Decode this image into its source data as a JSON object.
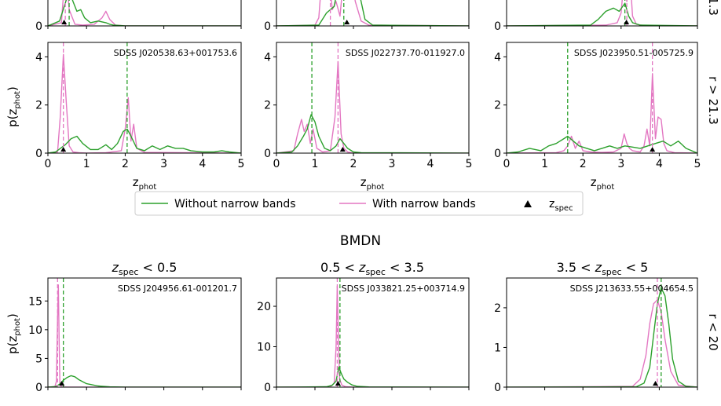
{
  "section_title": "BMDN",
  "legend": {
    "without_label": "Without narrow bands",
    "with_label": "With narrow bands",
    "zspec_label": "z",
    "zspec_sub": "spec"
  },
  "axis": {
    "ylabel_main": "p(z",
    "ylabel_sub": "phot",
    "ylabel_close": ")",
    "xlabel_main": "z",
    "xlabel_sub": "phot"
  },
  "column_titles": [
    {
      "pre": "",
      "main": "z",
      "sub": "spec",
      "post": " < 0.5"
    },
    {
      "pre": "0.5 < ",
      "main": "z",
      "sub": "spec",
      "post": " < 3.5"
    },
    {
      "pre": "3.5 < ",
      "main": "z",
      "sub": "spec",
      "post": " < 5"
    }
  ],
  "row_labels": [
    "r > 21.3",
    "r < 20"
  ],
  "partial_top_row_label": "1.3",
  "colors": {
    "without": "#2ca02c",
    "with": "#e377c2",
    "axis": "#000000"
  },
  "chart_data": [
    {
      "type": "line",
      "row": "top-partial",
      "xlim": [
        0,
        5
      ],
      "ylim": [
        0,
        4.5
      ],
      "yticks_visible": [
        "0"
      ],
      "title": "",
      "object": "",
      "series": [
        {
          "name": "Without narrow bands",
          "x": [
            0,
            0.3,
            0.45,
            0.55,
            0.65,
            0.75,
            0.85,
            0.95,
            1.1,
            1.3,
            1.5,
            1.6,
            1.7,
            2,
            5
          ],
          "y": [
            0,
            0.3,
            1.4,
            2.2,
            1.5,
            0.9,
            1.0,
            0.5,
            0.2,
            0.3,
            0.2,
            0.1,
            0.05,
            0,
            0
          ]
        },
        {
          "name": "With narrow bands",
          "x": [
            0,
            0.35,
            0.42,
            0.48,
            0.55,
            0.7,
            0.9,
            1.2,
            1.4,
            1.5,
            1.6,
            1.75,
            2,
            5
          ],
          "y": [
            0,
            0.2,
            2.5,
            3.2,
            1.0,
            0.1,
            0.05,
            0.1,
            0.5,
            0.9,
            0.4,
            0.05,
            0,
            0
          ]
        }
      ],
      "zspec": 0.42,
      "vlines": {
        "without": 0.55,
        "with": 0.45
      }
    },
    {
      "type": "line",
      "row": "top-partial",
      "xlim": [
        0,
        5
      ],
      "ylim": [
        0,
        4.5
      ],
      "yticks_visible": [
        "0"
      ],
      "title": "",
      "object": "",
      "series": [
        {
          "name": "Without narrow bands",
          "x": [
            0,
            1.1,
            1.3,
            1.5,
            1.6,
            1.75,
            1.85,
            1.95,
            2.1,
            2.2,
            2.3,
            2.5,
            5
          ],
          "y": [
            0,
            0.05,
            0.8,
            1.2,
            2.5,
            3.0,
            2.8,
            2.4,
            2.6,
            1.5,
            0.4,
            0.05,
            0
          ]
        },
        {
          "name": "With narrow bands",
          "x": [
            0,
            1.0,
            1.1,
            1.18,
            1.25,
            1.35,
            1.45,
            1.55,
            1.65,
            1.75,
            1.85,
            1.95,
            2.05,
            2.2,
            2.4,
            5
          ],
          "y": [
            0,
            0.05,
            0.5,
            3.0,
            2.5,
            3.5,
            1.0,
            1.5,
            0.6,
            3.2,
            2.0,
            2.8,
            1.5,
            0.3,
            0.05,
            0
          ]
        }
      ],
      "zspec": 1.83,
      "vlines": {
        "without": 1.75,
        "with": 1.4
      }
    },
    {
      "type": "line",
      "row": "top-partial",
      "xlim": [
        0,
        5
      ],
      "ylim": [
        0,
        4.5
      ],
      "yticks_visible": [
        "0"
      ],
      "title": "",
      "object": "",
      "series": [
        {
          "name": "Without narrow bands",
          "x": [
            0,
            2.2,
            2.4,
            2.6,
            2.8,
            2.95,
            3.1,
            3.2,
            3.3,
            3.5,
            5
          ],
          "y": [
            0,
            0.05,
            0.4,
            0.9,
            1.1,
            0.9,
            1.4,
            0.6,
            0.2,
            0.05,
            0
          ]
        },
        {
          "name": "With narrow bands",
          "x": [
            0,
            2.6,
            2.9,
            3.0,
            3.08,
            3.15,
            3.22,
            3.3,
            3.4,
            3.6,
            5
          ],
          "y": [
            0,
            0.05,
            0.2,
            0.8,
            3.0,
            1.5,
            3.5,
            0.6,
            0.1,
            0.02,
            0
          ]
        }
      ],
      "zspec": 3.14,
      "vlines": {
        "without": 3.1,
        "with": 3.15
      }
    },
    {
      "type": "line",
      "row": "r > 21.3",
      "title": "",
      "object": "SDSS J020538.63+001753.6",
      "xlim": [
        0,
        5
      ],
      "ylim": [
        0,
        4.6
      ],
      "xticks": [
        0,
        1,
        2,
        3,
        4,
        5
      ],
      "xtick_labels": [
        "0",
        "1",
        "2",
        "3",
        "4",
        "5"
      ],
      "yticks": [
        0,
        2,
        4
      ],
      "ytick_labels": [
        "0",
        "2",
        "4"
      ],
      "series": [
        {
          "name": "Without narrow bands",
          "x": [
            0,
            0.2,
            0.45,
            0.6,
            0.75,
            0.9,
            1.1,
            1.3,
            1.5,
            1.65,
            1.8,
            1.95,
            2.05,
            2.15,
            2.3,
            2.5,
            2.7,
            2.9,
            3.1,
            3.3,
            3.5,
            3.7,
            4.0,
            4.3,
            4.5,
            4.7,
            5.0
          ],
          "y": [
            0,
            0.05,
            0.35,
            0.6,
            0.7,
            0.4,
            0.15,
            0.15,
            0.35,
            0.15,
            0.4,
            0.9,
            1.0,
            0.7,
            0.2,
            0.1,
            0.3,
            0.15,
            0.3,
            0.2,
            0.2,
            0.1,
            0.05,
            0.05,
            0.1,
            0.05,
            0
          ]
        },
        {
          "name": "With narrow bands",
          "x": [
            0,
            0.25,
            0.32,
            0.4,
            0.48,
            0.55,
            0.65,
            0.8,
            1.0,
            1.5,
            1.9,
            2.0,
            2.08,
            2.15,
            2.22,
            2.3,
            2.5,
            5.0
          ],
          "y": [
            0,
            0.05,
            1.5,
            4.1,
            2.0,
            0.3,
            0.05,
            0.02,
            0,
            0.02,
            0.1,
            1.0,
            2.3,
            0.5,
            1.2,
            0.2,
            0.03,
            0
          ]
        }
      ],
      "zspec": 0.4,
      "vlines": {
        "without": 2.05,
        "with": 0.4
      }
    },
    {
      "type": "line",
      "row": "r > 21.3",
      "title": "",
      "object": "SDSS J022737.70-011927.0",
      "xlim": [
        0,
        5
      ],
      "ylim": [
        0,
        4.6
      ],
      "xticks": [
        0,
        1,
        2,
        3,
        4,
        5
      ],
      "xtick_labels": [
        "0",
        "1",
        "2",
        "3",
        "4",
        "5"
      ],
      "yticks": [
        0,
        2,
        4
      ],
      "ytick_labels": [
        "0",
        "2",
        "4"
      ],
      "series": [
        {
          "name": "Without narrow bands",
          "x": [
            0,
            0.4,
            0.55,
            0.7,
            0.8,
            0.9,
            1.0,
            1.1,
            1.25,
            1.4,
            1.55,
            1.65,
            1.75,
            1.85,
            2.0,
            2.2,
            5.0
          ],
          "y": [
            0,
            0.05,
            0.3,
            0.7,
            1.0,
            1.6,
            1.3,
            0.7,
            0.2,
            0.1,
            0.3,
            0.6,
            0.4,
            0.2,
            0.05,
            0.02,
            0
          ]
        },
        {
          "name": "With narrow bands",
          "x": [
            0,
            0.45,
            0.55,
            0.65,
            0.72,
            0.8,
            0.88,
            0.95,
            1.05,
            1.2,
            1.4,
            1.52,
            1.6,
            1.68,
            1.75,
            1.85,
            2.0,
            5.0
          ],
          "y": [
            0,
            0.1,
            0.8,
            1.4,
            0.9,
            1.2,
            0.4,
            1.0,
            0.2,
            0.05,
            0.1,
            1.5,
            3.8,
            0.8,
            0.2,
            0.05,
            0,
            0
          ]
        }
      ],
      "zspec": 1.72,
      "vlines": {
        "without": 0.92,
        "with": 1.6
      }
    },
    {
      "type": "line",
      "row": "r > 21.3",
      "title": "",
      "object": "SDSS J023950.51-005725.9",
      "xlim": [
        0,
        5
      ],
      "ylim": [
        0,
        4.6
      ],
      "xticks": [
        0,
        1,
        2,
        3,
        4,
        5
      ],
      "xtick_labels": [
        "0",
        "1",
        "2",
        "3",
        "4",
        "5"
      ],
      "yticks": [
        0,
        2,
        4
      ],
      "ytick_labels": [
        "0",
        "2",
        "4"
      ],
      "series": [
        {
          "name": "Without narrow bands",
          "x": [
            0,
            0.3,
            0.6,
            0.9,
            1.1,
            1.3,
            1.5,
            1.6,
            1.75,
            1.9,
            2.1,
            2.3,
            2.5,
            2.7,
            2.9,
            3.1,
            3.3,
            3.5,
            3.7,
            3.9,
            4.1,
            4.3,
            4.5,
            4.7,
            5.0
          ],
          "y": [
            0,
            0.05,
            0.2,
            0.1,
            0.3,
            0.4,
            0.6,
            0.7,
            0.5,
            0.3,
            0.2,
            0.1,
            0.2,
            0.3,
            0.2,
            0.3,
            0.25,
            0.2,
            0.3,
            0.4,
            0.5,
            0.3,
            0.5,
            0.2,
            0
          ]
        },
        {
          "name": "With narrow bands",
          "x": [
            0,
            1.3,
            1.5,
            1.6,
            1.7,
            1.8,
            1.9,
            2.0,
            2.2,
            2.5,
            2.8,
            3.0,
            3.08,
            3.15,
            3.22,
            3.3,
            3.5,
            3.6,
            3.68,
            3.75,
            3.82,
            3.9,
            3.97,
            4.05,
            4.12,
            4.2,
            4.4,
            5.0
          ],
          "y": [
            0,
            0.02,
            0.1,
            0.3,
            0.7,
            0.2,
            0.5,
            0.1,
            0.05,
            0.03,
            0.05,
            0.2,
            0.8,
            0.4,
            0.2,
            0.1,
            0.05,
            0.3,
            1.0,
            0.3,
            3.3,
            0.6,
            1.5,
            1.4,
            0.4,
            0.1,
            0.02,
            0
          ]
        }
      ],
      "zspec": 3.82,
      "vlines": {
        "without": 1.6,
        "with": 3.82
      }
    },
    {
      "type": "line",
      "row": "r < 20",
      "title": "z_spec < 0.5",
      "object": "SDSS J204956.61-001201.7",
      "xlim": [
        0,
        5
      ],
      "ylim": [
        0,
        19
      ],
      "yticks": [
        0,
        5,
        10,
        15
      ],
      "ytick_labels": [
        "0",
        "5",
        "10",
        "15"
      ],
      "series": [
        {
          "name": "Without narrow bands",
          "x": [
            0,
            0.2,
            0.3,
            0.4,
            0.5,
            0.6,
            0.7,
            0.8,
            1.0,
            1.3,
            1.6,
            2.0,
            5.0
          ],
          "y": [
            0,
            0.1,
            0.5,
            1.2,
            1.7,
            2.0,
            1.8,
            1.3,
            0.6,
            0.2,
            0.05,
            0.01,
            0
          ]
        },
        {
          "name": "With narrow bands",
          "x": [
            0,
            0.18,
            0.22,
            0.25,
            0.27,
            0.29,
            0.31,
            0.35,
            0.5,
            1.0,
            5.0
          ],
          "y": [
            0,
            0.1,
            1.0,
            12.0,
            17.8,
            8.0,
            0.5,
            0.05,
            0.01,
            0,
            0
          ]
        }
      ],
      "zspec": 0.36,
      "vlines": {
        "without": 0.4,
        "with": 0.25
      }
    },
    {
      "type": "line",
      "row": "r < 20",
      "title": "0.5 < z_spec < 3.5",
      "object": "SDSS J033821.25+003714.9",
      "xlim": [
        0,
        5
      ],
      "ylim": [
        0,
        27
      ],
      "yticks": [
        0,
        10,
        20
      ],
      "ytick_labels": [
        "0",
        "10",
        "20"
      ],
      "series": [
        {
          "name": "Without narrow bands",
          "x": [
            0,
            1.3,
            1.45,
            1.55,
            1.62,
            1.68,
            1.75,
            1.85,
            1.95,
            2.1,
            2.4,
            5.0
          ],
          "y": [
            0,
            0.1,
            0.5,
            1.5,
            5.0,
            3.5,
            2.0,
            1.2,
            0.6,
            0.2,
            0.05,
            0
          ]
        },
        {
          "name": "With narrow bands",
          "x": [
            0,
            1.4,
            1.5,
            1.55,
            1.58,
            1.61,
            1.64,
            1.7,
            1.8,
            2.0,
            5.0
          ],
          "y": [
            0,
            0.05,
            1.0,
            10.0,
            25.0,
            12.0,
            2.0,
            0.5,
            0.1,
            0.02,
            0
          ]
        }
      ],
      "zspec": 1.6,
      "vlines": {
        "without": 1.65,
        "with": 1.58
      }
    },
    {
      "type": "line",
      "row": "r < 20",
      "title": "3.5 < z_spec < 5",
      "object": "SDSS J213633.55+004654.5",
      "xlim": [
        0,
        5
      ],
      "ylim": [
        0,
        2.75
      ],
      "yticks": [
        0,
        1,
        2
      ],
      "ytick_labels": [
        "0",
        "1",
        "2"
      ],
      "series": [
        {
          "name": "Without narrow bands",
          "x": [
            0,
            3.4,
            3.6,
            3.75,
            3.85,
            3.95,
            4.05,
            4.15,
            4.25,
            4.35,
            4.5,
            4.7,
            5.0
          ],
          "y": [
            0,
            0.01,
            0.1,
            0.5,
            1.3,
            2.1,
            2.5,
            2.3,
            1.6,
            0.7,
            0.15,
            0.02,
            0
          ]
        },
        {
          "name": "With narrow bands",
          "x": [
            0,
            3.3,
            3.5,
            3.65,
            3.75,
            3.85,
            3.95,
            4.05,
            4.15,
            4.3,
            4.5,
            5.0
          ],
          "y": [
            0,
            0.02,
            0.2,
            0.8,
            1.6,
            2.1,
            2.2,
            1.9,
            1.2,
            0.4,
            0.05,
            0
          ]
        }
      ],
      "zspec": 3.9,
      "vlines": {
        "without": 4.05,
        "with": 3.95
      }
    }
  ]
}
